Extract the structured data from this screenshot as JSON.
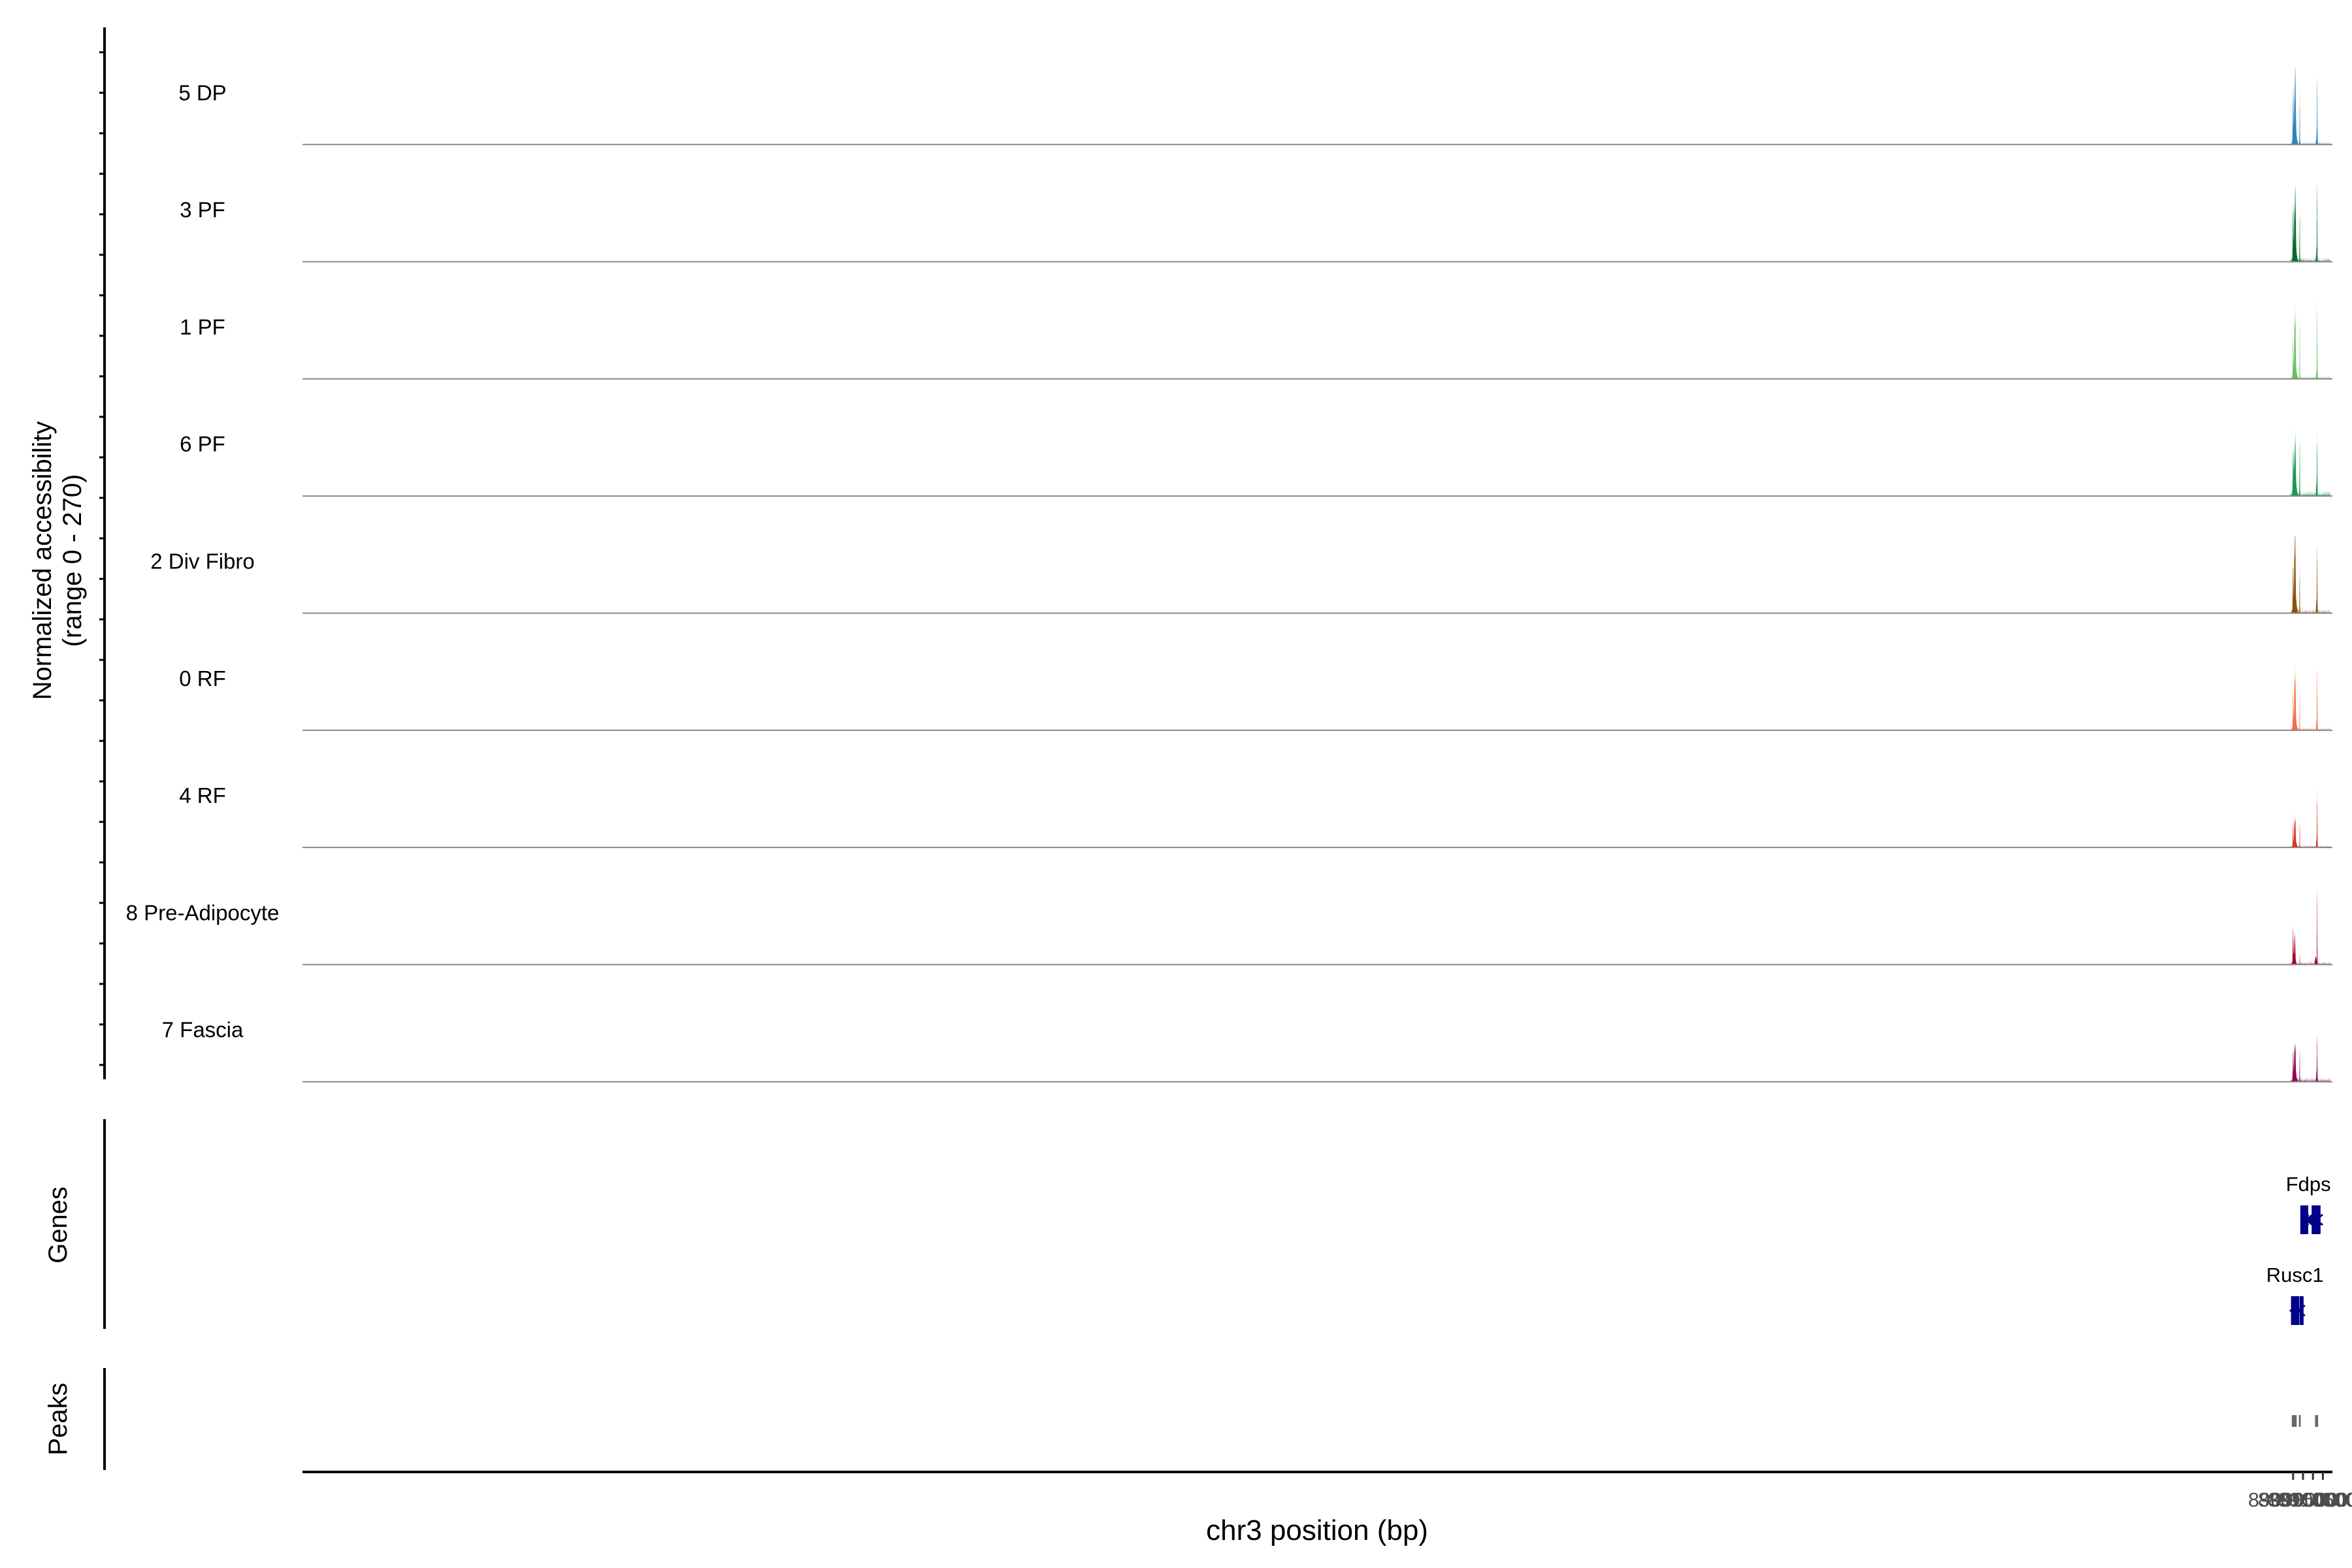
{
  "chart_data": {
    "type": "area",
    "title": "",
    "ylabel_line1": "Normalized accessibility",
    "ylabel_line2": "(range 0 - 270)",
    "y_range": [
      0,
      270
    ],
    "xlabel": "chr3 position (bp)",
    "xlim": [
      88087500,
      89109800
    ],
    "x_ticks": [
      89090000,
      89095000,
      89100000,
      89105000
    ],
    "x_tick_labels": [
      "89090000",
      "89095000",
      "89100000",
      "89105000"
    ],
    "genes_label": "Genes",
    "peaks_label": "Peaks",
    "tracks": [
      {
        "name": "5 DP",
        "color": "#3182bd",
        "noise": 0.03,
        "peaks": [
          [
            89090000,
            150,
            0.62
          ],
          [
            89090600,
            80,
            0.42
          ],
          [
            89091100,
            200,
            0.75
          ],
          [
            89090900,
            600,
            0.32
          ],
          [
            89093350,
            90,
            0.68
          ],
          [
            89101650,
            80,
            0.22
          ],
          [
            89102150,
            110,
            0.92
          ]
        ]
      },
      {
        "name": "3 PF",
        "color": "#006d2c",
        "noise": 0.04,
        "peaks": [
          [
            89090000,
            150,
            0.62
          ],
          [
            89090600,
            80,
            0.42
          ],
          [
            89091100,
            200,
            0.75
          ],
          [
            89090900,
            600,
            0.3
          ],
          [
            89093350,
            90,
            0.65
          ],
          [
            89101650,
            80,
            0.2
          ],
          [
            89102100,
            100,
            1.0
          ]
        ]
      },
      {
        "name": "1 PF",
        "color": "#66c164",
        "noise": 0.03,
        "peaks": [
          [
            89090000,
            120,
            0.45
          ],
          [
            89090700,
            150,
            0.45
          ],
          [
            89091100,
            180,
            0.65
          ],
          [
            89090900,
            600,
            0.22
          ],
          [
            89093350,
            80,
            0.8
          ],
          [
            89101650,
            80,
            0.12
          ],
          [
            89102100,
            110,
            0.95
          ]
        ]
      },
      {
        "name": "6 PF",
        "color": "#1a9850",
        "noise": 0.05,
        "peaks": [
          [
            89090000,
            150,
            0.55
          ],
          [
            89090500,
            90,
            0.35
          ],
          [
            89091100,
            200,
            0.55
          ],
          [
            89090900,
            600,
            0.28
          ],
          [
            89093350,
            100,
            0.7
          ],
          [
            89101650,
            90,
            0.2
          ],
          [
            89102100,
            120,
            0.75
          ]
        ]
      },
      {
        "name": "2 Div Fibro",
        "color": "#8c510a",
        "noise": 0.04,
        "peaks": [
          [
            89090000,
            150,
            0.55
          ],
          [
            89090600,
            80,
            0.45
          ],
          [
            89091000,
            200,
            0.85
          ],
          [
            89090900,
            600,
            0.3
          ],
          [
            89093350,
            90,
            0.6
          ],
          [
            89101700,
            80,
            0.18
          ],
          [
            89102100,
            120,
            0.85
          ]
        ]
      },
      {
        "name": "0 RF",
        "color": "#f46d43",
        "noise": 0.03,
        "peaks": [
          [
            89090000,
            120,
            0.45
          ],
          [
            89090700,
            150,
            0.35
          ],
          [
            89091100,
            180,
            0.55
          ],
          [
            89090900,
            600,
            0.2
          ],
          [
            89093350,
            80,
            0.5
          ],
          [
            89101700,
            80,
            0.12
          ],
          [
            89102100,
            110,
            0.8
          ]
        ]
      },
      {
        "name": "4 RF",
        "color": "#d73027",
        "noise": 0.025,
        "peaks": [
          [
            89090000,
            120,
            0.3
          ],
          [
            89090700,
            150,
            0.22
          ],
          [
            89091100,
            180,
            0.28
          ],
          [
            89090900,
            600,
            0.1
          ],
          [
            89093350,
            80,
            0.35
          ],
          [
            89101700,
            80,
            0.12
          ],
          [
            89102100,
            110,
            0.7
          ]
        ]
      },
      {
        "name": "8 Pre-Adipocyte",
        "color": "#a50026",
        "noise": 0.03,
        "peaks": [
          [
            89090000,
            140,
            0.4
          ],
          [
            89090900,
            200,
            0.3
          ],
          [
            89090500,
            500,
            0.12
          ],
          [
            89093350,
            60,
            0.15
          ],
          [
            89101400,
            300,
            0.1
          ],
          [
            89102100,
            80,
            1.0
          ]
        ]
      },
      {
        "name": "7 Fascia",
        "color": "#8e0152",
        "noise": 0.04,
        "peaks": [
          [
            89090000,
            140,
            0.35
          ],
          [
            89090700,
            150,
            0.28
          ],
          [
            89091100,
            180,
            0.32
          ],
          [
            89090900,
            600,
            0.15
          ],
          [
            89093350,
            80,
            0.42
          ],
          [
            89101700,
            80,
            0.15
          ],
          [
            89102100,
            110,
            0.6
          ]
        ]
      }
    ],
    "genes": [
      {
        "name": "Fdps",
        "strand": "-",
        "start": 89093650,
        "end": 89101950,
        "row": 0,
        "exons": [
          [
            89093650,
            89093900,
            1
          ],
          [
            89094250,
            89094350,
            1
          ],
          [
            89094550,
            89094600,
            1
          ],
          [
            89094850,
            89094920,
            1
          ],
          [
            89095050,
            89095130,
            1
          ],
          [
            89095400,
            89095500,
            1
          ],
          [
            89095650,
            89095720,
            1
          ],
          [
            89099350,
            89099480,
            1
          ],
          [
            89100750,
            89100900,
            1
          ],
          [
            89101850,
            89101950,
            1
          ]
        ],
        "arrows": [
          89094500,
          89096600,
          89097600,
          89098600,
          89099650,
          89100600,
          89101600
        ]
      },
      {
        "name": "Rusc1",
        "strand": "-",
        "start": 89088800,
        "end": 89093400,
        "row": 1,
        "exons": [
          [
            89088950,
            89089000,
            1
          ],
          [
            89089200,
            89089300,
            1
          ],
          [
            89089400,
            89089550,
            1
          ],
          [
            89089700,
            89089780,
            1
          ],
          [
            89089850,
            89089880,
            1
          ],
          [
            89090000,
            89090050,
            1
          ],
          [
            89090500,
            89090900,
            1
          ],
          [
            89091150,
            89092550,
            1
          ],
          [
            89093320,
            89093400,
            1
          ]
        ],
        "arrows": [
          89088800,
          89089650,
          89092650
        ]
      }
    ],
    "peak_regions": [
      [
        89089350,
        89091800
      ],
      [
        89092950,
        89093850
      ],
      [
        89101050,
        89102600
      ]
    ]
  },
  "colors": {
    "gene": "#00008b",
    "peak": "#696969",
    "baseline": "#888888",
    "axis": "#000000"
  }
}
